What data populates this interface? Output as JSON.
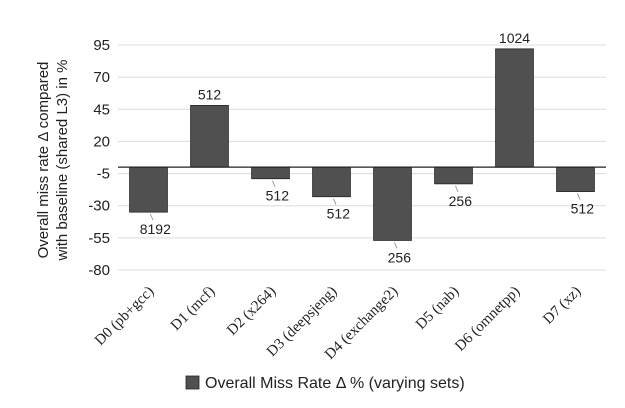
{
  "chart_data": {
    "type": "bar",
    "categories": [
      "D0 (pb+gcc)",
      "D1 (mcf)",
      "D2 (x264)",
      "D3 (deepsjeng)",
      "D4 (exchange2)",
      "D5 (nab)",
      "D6 (omnetpp)",
      "D7 (xz)"
    ],
    "series": [
      {
        "name": "Overall Miss Rate Δ % (varying sets)",
        "values": [
          -35,
          48,
          -9,
          -23,
          -57,
          -13,
          92,
          -19
        ],
        "data_labels": [
          "8192",
          "512",
          "512",
          "512",
          "256",
          "256",
          "1024",
          "512"
        ],
        "color": "#505050"
      }
    ],
    "ylabel_lines": [
      "Overall miss rate Δ compared",
      "with baseline (shared L3) in %"
    ],
    "xlabel": "",
    "yticks": [
      95,
      70,
      45,
      20,
      -5,
      -30,
      -55,
      -80
    ],
    "ylim": [
      -80,
      95
    ],
    "grid": true,
    "legend_position": "bottom"
  }
}
